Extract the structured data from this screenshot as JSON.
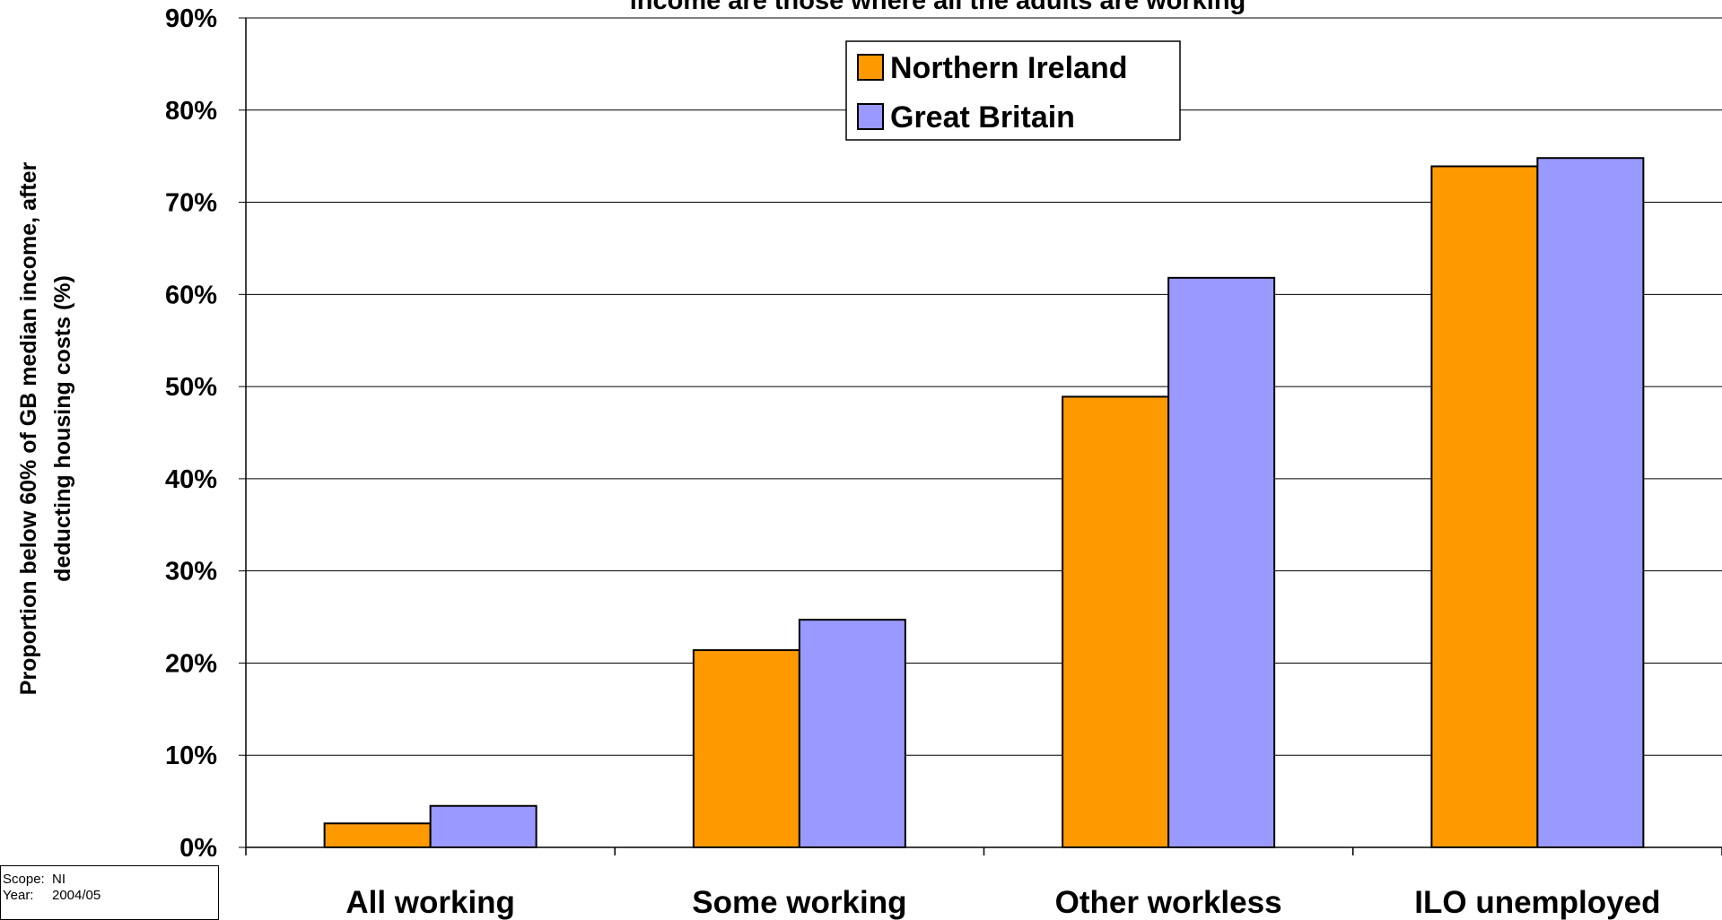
{
  "chart_data": {
    "type": "bar",
    "title": "income are those where all the adults are working",
    "xlabel": "",
    "ylabel_lines": [
      "Proportion below 60% of GB median income, after",
      "deducting housing costs (%)"
    ],
    "categories": [
      "All working",
      "Some working",
      "Other workless",
      "ILO unemployed"
    ],
    "series": [
      {
        "name": "Northern Ireland",
        "color": "#ff9900",
        "values": [
          2.6,
          21.4,
          48.9,
          73.9
        ]
      },
      {
        "name": "Great Britain",
        "color": "#9999ff",
        "values": [
          4.5,
          24.7,
          61.8,
          74.8
        ]
      }
    ],
    "ylim": [
      0,
      90
    ],
    "yticks": [
      0,
      10,
      20,
      30,
      40,
      50,
      60,
      70,
      80,
      90
    ],
    "ytick_labels": [
      "0%",
      "10%",
      "20%",
      "30%",
      "40%",
      "50%",
      "60%",
      "70%",
      "80%",
      "90%"
    ],
    "grid": true,
    "legend_position": "top-center"
  },
  "scope_box": {
    "scope_key": "Scope:",
    "scope_value": "NI",
    "year_key": "Year:",
    "year_value": "2004/05"
  }
}
